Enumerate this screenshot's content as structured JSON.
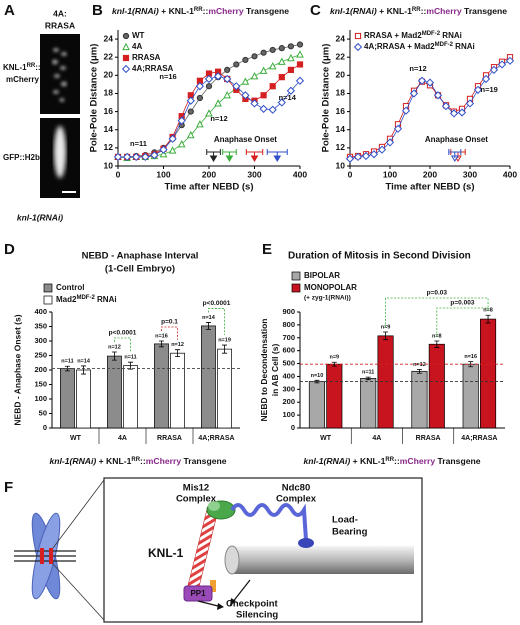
{
  "panel_a": {
    "letter": "A",
    "top": [
      "4A:",
      "RRASA"
    ],
    "row1": [
      "KNL-1",
      "RR",
      "::",
      "mCherry"
    ],
    "row2": "GFP::H2b",
    "caption": "knl-1(RNAi)"
  },
  "chart_data": [
    {
      "panel": "B",
      "type": "line",
      "title": [
        "knl-1(RNAi)",
        " + KNL-1",
        "RR",
        "::",
        "mCherry",
        " Transgene"
      ],
      "xlabel": "Time after NEBD (s)",
      "ylabel": "Pole-Pole Distance (μm)",
      "x": [
        0,
        20,
        40,
        60,
        80,
        100,
        120,
        140,
        160,
        180,
        200,
        220,
        240,
        260,
        280,
        300,
        320,
        340,
        360,
        380,
        400
      ],
      "series": [
        {
          "name": "WT",
          "color": "#666666",
          "marker": "circle",
          "filled": true,
          "values": [
            11,
            11,
            11.1,
            11.2,
            11.5,
            12,
            13,
            14.5,
            16,
            17.5,
            18.8,
            19.8,
            20.6,
            21.2,
            21.7,
            22.1,
            22.5,
            22.8,
            23,
            23.2,
            23.4
          ]
        },
        {
          "name": "4A",
          "color": "#3cae3c",
          "marker": "triangle",
          "filled": false,
          "values": [
            11,
            10.9,
            11,
            11,
            11.1,
            11.3,
            11.7,
            12.4,
            13.4,
            14.6,
            15.8,
            16.9,
            17.8,
            18.6,
            19.3,
            19.9,
            20.5,
            21,
            21.5,
            21.9,
            22.3
          ]
        },
        {
          "name": "RRASA",
          "color": "#d42020",
          "marker": "square",
          "filled": true,
          "values": [
            11,
            11,
            11,
            11.1,
            11.3,
            11.9,
            13.2,
            15.5,
            17.8,
            19.4,
            20.2,
            20.4,
            19.6,
            18.4,
            17.4,
            17.2,
            17.8,
            18.8,
            19.8,
            20.6,
            21.2
          ]
        },
        {
          "name": "4A;RRASA",
          "color": "#2f4fc8",
          "marker": "diamond",
          "filled": false,
          "values": [
            11,
            11,
            11,
            11,
            11.2,
            11.8,
            13,
            15,
            17.2,
            18.8,
            19.6,
            19.9,
            19.6,
            18.8,
            17.8,
            16.9,
            16.3,
            16.2,
            17,
            18.3,
            19.4
          ]
        }
      ],
      "xlim": [
        0,
        400
      ],
      "ylim": [
        10,
        25
      ],
      "xticks": [
        0,
        100,
        200,
        300,
        400
      ],
      "yticks": [
        10,
        12,
        14,
        16,
        18,
        20,
        22,
        24
      ],
      "legend": "upper left",
      "annotations": [
        {
          "text": "n=11",
          "color": "#222222"
        },
        {
          "text": "n=16",
          "color": "#d42020"
        },
        {
          "text": "n=12",
          "color": "#3cae3c"
        },
        {
          "text": "n=14",
          "color": "#2f4fc8"
        }
      ],
      "onset": {
        "label": "Anaphase Onset",
        "values": [
          210,
          245,
          300,
          350
        ],
        "errors": [
          15,
          15,
          18,
          22
        ],
        "colors": [
          "#222222",
          "#3cae3c",
          "#d42020",
          "#2f4fc8"
        ]
      }
    },
    {
      "panel": "C",
      "type": "line",
      "title": [
        "knl-1(RNAi)",
        " + KNL-1",
        "RR",
        "::",
        "mCherry",
        " Transgene"
      ],
      "xlabel": "Time after NEBD (s)",
      "ylabel": "Pole-Pole Distance (μm)",
      "x": [
        0,
        20,
        40,
        60,
        80,
        100,
        120,
        140,
        160,
        180,
        200,
        220,
        240,
        260,
        280,
        300,
        320,
        340,
        360,
        380,
        400
      ],
      "series": [
        {
          "name": "RRASA + Mad2",
          "name_sup": "MDF-2",
          "name_end": " RNAi",
          "color": "#d42020",
          "marker": "square",
          "filled": false,
          "values": [
            11,
            11.1,
            11.3,
            11.6,
            12.1,
            13,
            14.6,
            16.6,
            18.3,
            19.3,
            18.9,
            17.8,
            16.7,
            16,
            16.3,
            17.4,
            18.8,
            20,
            20.9,
            21.5,
            22
          ]
        },
        {
          "name": "4A;RRASA + Mad2",
          "name_sup": "MDF-2",
          "name_end": " RNAi",
          "color": "#2f4fc8",
          "marker": "diamond",
          "filled": false,
          "values": [
            10.8,
            11,
            11.1,
            11.3,
            11.8,
            12.6,
            14.1,
            16.1,
            18,
            19.4,
            19.2,
            17.8,
            16.6,
            15.8,
            15.9,
            16.9,
            18.4,
            19.6,
            20.6,
            21.2,
            21.6
          ]
        }
      ],
      "xlim": [
        0,
        400
      ],
      "ylim": [
        10,
        25
      ],
      "xticks": [
        0,
        100,
        200,
        300,
        400
      ],
      "yticks": [
        10,
        12,
        14,
        16,
        18,
        20,
        22,
        24
      ],
      "legend": "upper left",
      "annotations": [
        {
          "text": "n=12",
          "color": "#d42020"
        },
        {
          "text": "n=19",
          "color": "#2f4fc8"
        }
      ],
      "onset": {
        "label": "Anaphase Onset",
        "values": [
          270,
          262
        ],
        "errors": [
          18,
          15
        ],
        "colors": [
          "#d42020",
          "#2f4fc8"
        ]
      }
    },
    {
      "panel": "D",
      "type": "bar",
      "title": [
        "NEBD - Anaphase Interval",
        "(1-Cell Embryo)"
      ],
      "ylabel": "NEBD - Anaphase Onset (s)",
      "categories": [
        "WT",
        "4A",
        "RRASA",
        "4A;RRASA"
      ],
      "category_colors": [
        "#111111",
        "#3cae3c",
        "#111111",
        "#111111"
      ],
      "series": [
        {
          "name": "Control",
          "color": "#8c8c8c",
          "values": [
            205,
            248,
            290,
            352
          ],
          "errors": [
            8,
            14,
            10,
            12
          ],
          "n_labels": [
            "n=11",
            "n=12",
            "n=16",
            "n=14"
          ]
        },
        {
          "name": "Mad2",
          "name_sup": "MDF-2",
          "name_end": " RNAi",
          "color": "#ffffff",
          "values": [
            200,
            215,
            258,
            272
          ],
          "errors": [
            14,
            12,
            12,
            14
          ],
          "n_labels": [
            "n=14",
            "n=11",
            "n=12",
            "n=19"
          ]
        }
      ],
      "ylim": [
        0,
        400
      ],
      "yticks": [
        0,
        50,
        100,
        150,
        200,
        250,
        300,
        350,
        400
      ],
      "reference_lines": [
        {
          "value": 205,
          "color": "#444444"
        }
      ],
      "comparisons": [
        {
          "label": "p<0.0001",
          "color": "#3cae3c"
        },
        {
          "label": "p=0.1",
          "color": "#d42020"
        },
        {
          "label": "p<0.0001",
          "color": "#3cae3c"
        }
      ],
      "footer": [
        "knl-1(RNAi)",
        " + KNL-1",
        "RR",
        "::",
        "mCherry",
        " Transgene"
      ]
    },
    {
      "panel": "E",
      "type": "bar",
      "title": [
        "Duration of Mitosis in Second Division"
      ],
      "ylabel": [
        "NEBD to Decondensation",
        "in AB Cell (s)"
      ],
      "categories": [
        "WT",
        "4A",
        "RRASA",
        "4A;RRASA"
      ],
      "category_colors": [
        "#111111",
        "#3cae3c",
        "#111111",
        "#111111"
      ],
      "series": [
        {
          "name": "BIPOLAR",
          "color": "#a8a8a8",
          "values": [
            360,
            385,
            440,
            495
          ],
          "errors": [
            10,
            10,
            15,
            20
          ],
          "n_labels": [
            "n=10",
            "n=11",
            "n=12",
            "n=16"
          ]
        },
        {
          "name": "MONOPOLAR",
          "note": "(+ zyg-1(RNAi))",
          "color": "#c8141e",
          "values": [
            495,
            715,
            650,
            845
          ],
          "errors": [
            15,
            30,
            25,
            30
          ],
          "n_labels": [
            "n=9",
            "n=9",
            "n=8",
            "n=8"
          ]
        }
      ],
      "ylim": [
        0,
        900
      ],
      "yticks": [
        0,
        100,
        200,
        300,
        400,
        500,
        600,
        700,
        800,
        900
      ],
      "reference_lines": [
        {
          "value": 495,
          "color": "#d42020"
        },
        {
          "value": 360,
          "color": "#333333"
        }
      ],
      "comparisons": [
        {
          "label": "p=0.03",
          "color": "#3cae3c"
        },
        {
          "label": "p=0.003",
          "color": "#3cae3c"
        }
      ],
      "footer": [
        "knl-1(RNAi)",
        " + KNL-1",
        "RR",
        "::",
        "mCherry",
        " Transgene"
      ]
    }
  ],
  "panel_f": {
    "letter": "F",
    "mis12": [
      "Mis12",
      "Complex"
    ],
    "ndc80": [
      "Ndc80",
      "Complex"
    ],
    "load": [
      "Load-",
      "Bearing"
    ],
    "knl1": "KNL-1",
    "pp1": "PP1",
    "checkpoint": [
      "Checkpoint",
      "Silencing"
    ]
  }
}
